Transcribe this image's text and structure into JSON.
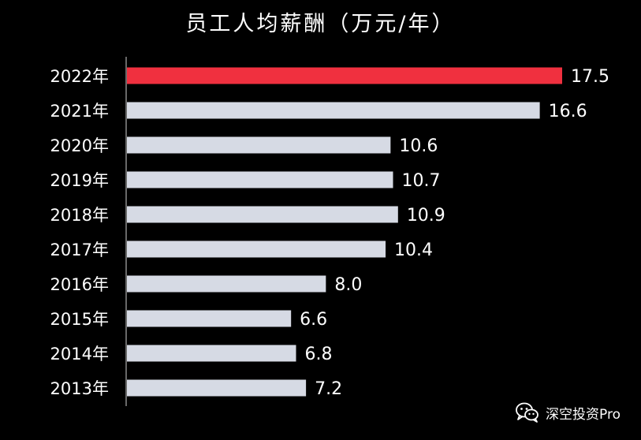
{
  "chart_data": {
    "type": "bar",
    "orientation": "horizontal",
    "title": "员工人均薪酬（万元/年）",
    "categories": [
      "2022年",
      "2021年",
      "2020年",
      "2019年",
      "2018年",
      "2017年",
      "2016年",
      "2015年",
      "2014年",
      "2013年"
    ],
    "values": [
      17.5,
      16.6,
      10.6,
      10.7,
      10.9,
      10.4,
      8.0,
      6.6,
      6.8,
      7.2
    ],
    "value_labels": [
      "17.5",
      "16.6",
      "10.6",
      "10.7",
      "10.9",
      "10.4",
      "8.0",
      "6.6",
      "6.8",
      "7.2"
    ],
    "highlight_index": 0,
    "xlim": [
      0,
      20
    ],
    "grid": false,
    "colors": {
      "background": "#000000",
      "bar": "#d6dae4",
      "highlight": "#f0303f",
      "text": "#ffffff",
      "axis": "#cfcfcf"
    }
  },
  "watermark": {
    "text": "深空投资Pro",
    "icon": "wechat-icon"
  }
}
